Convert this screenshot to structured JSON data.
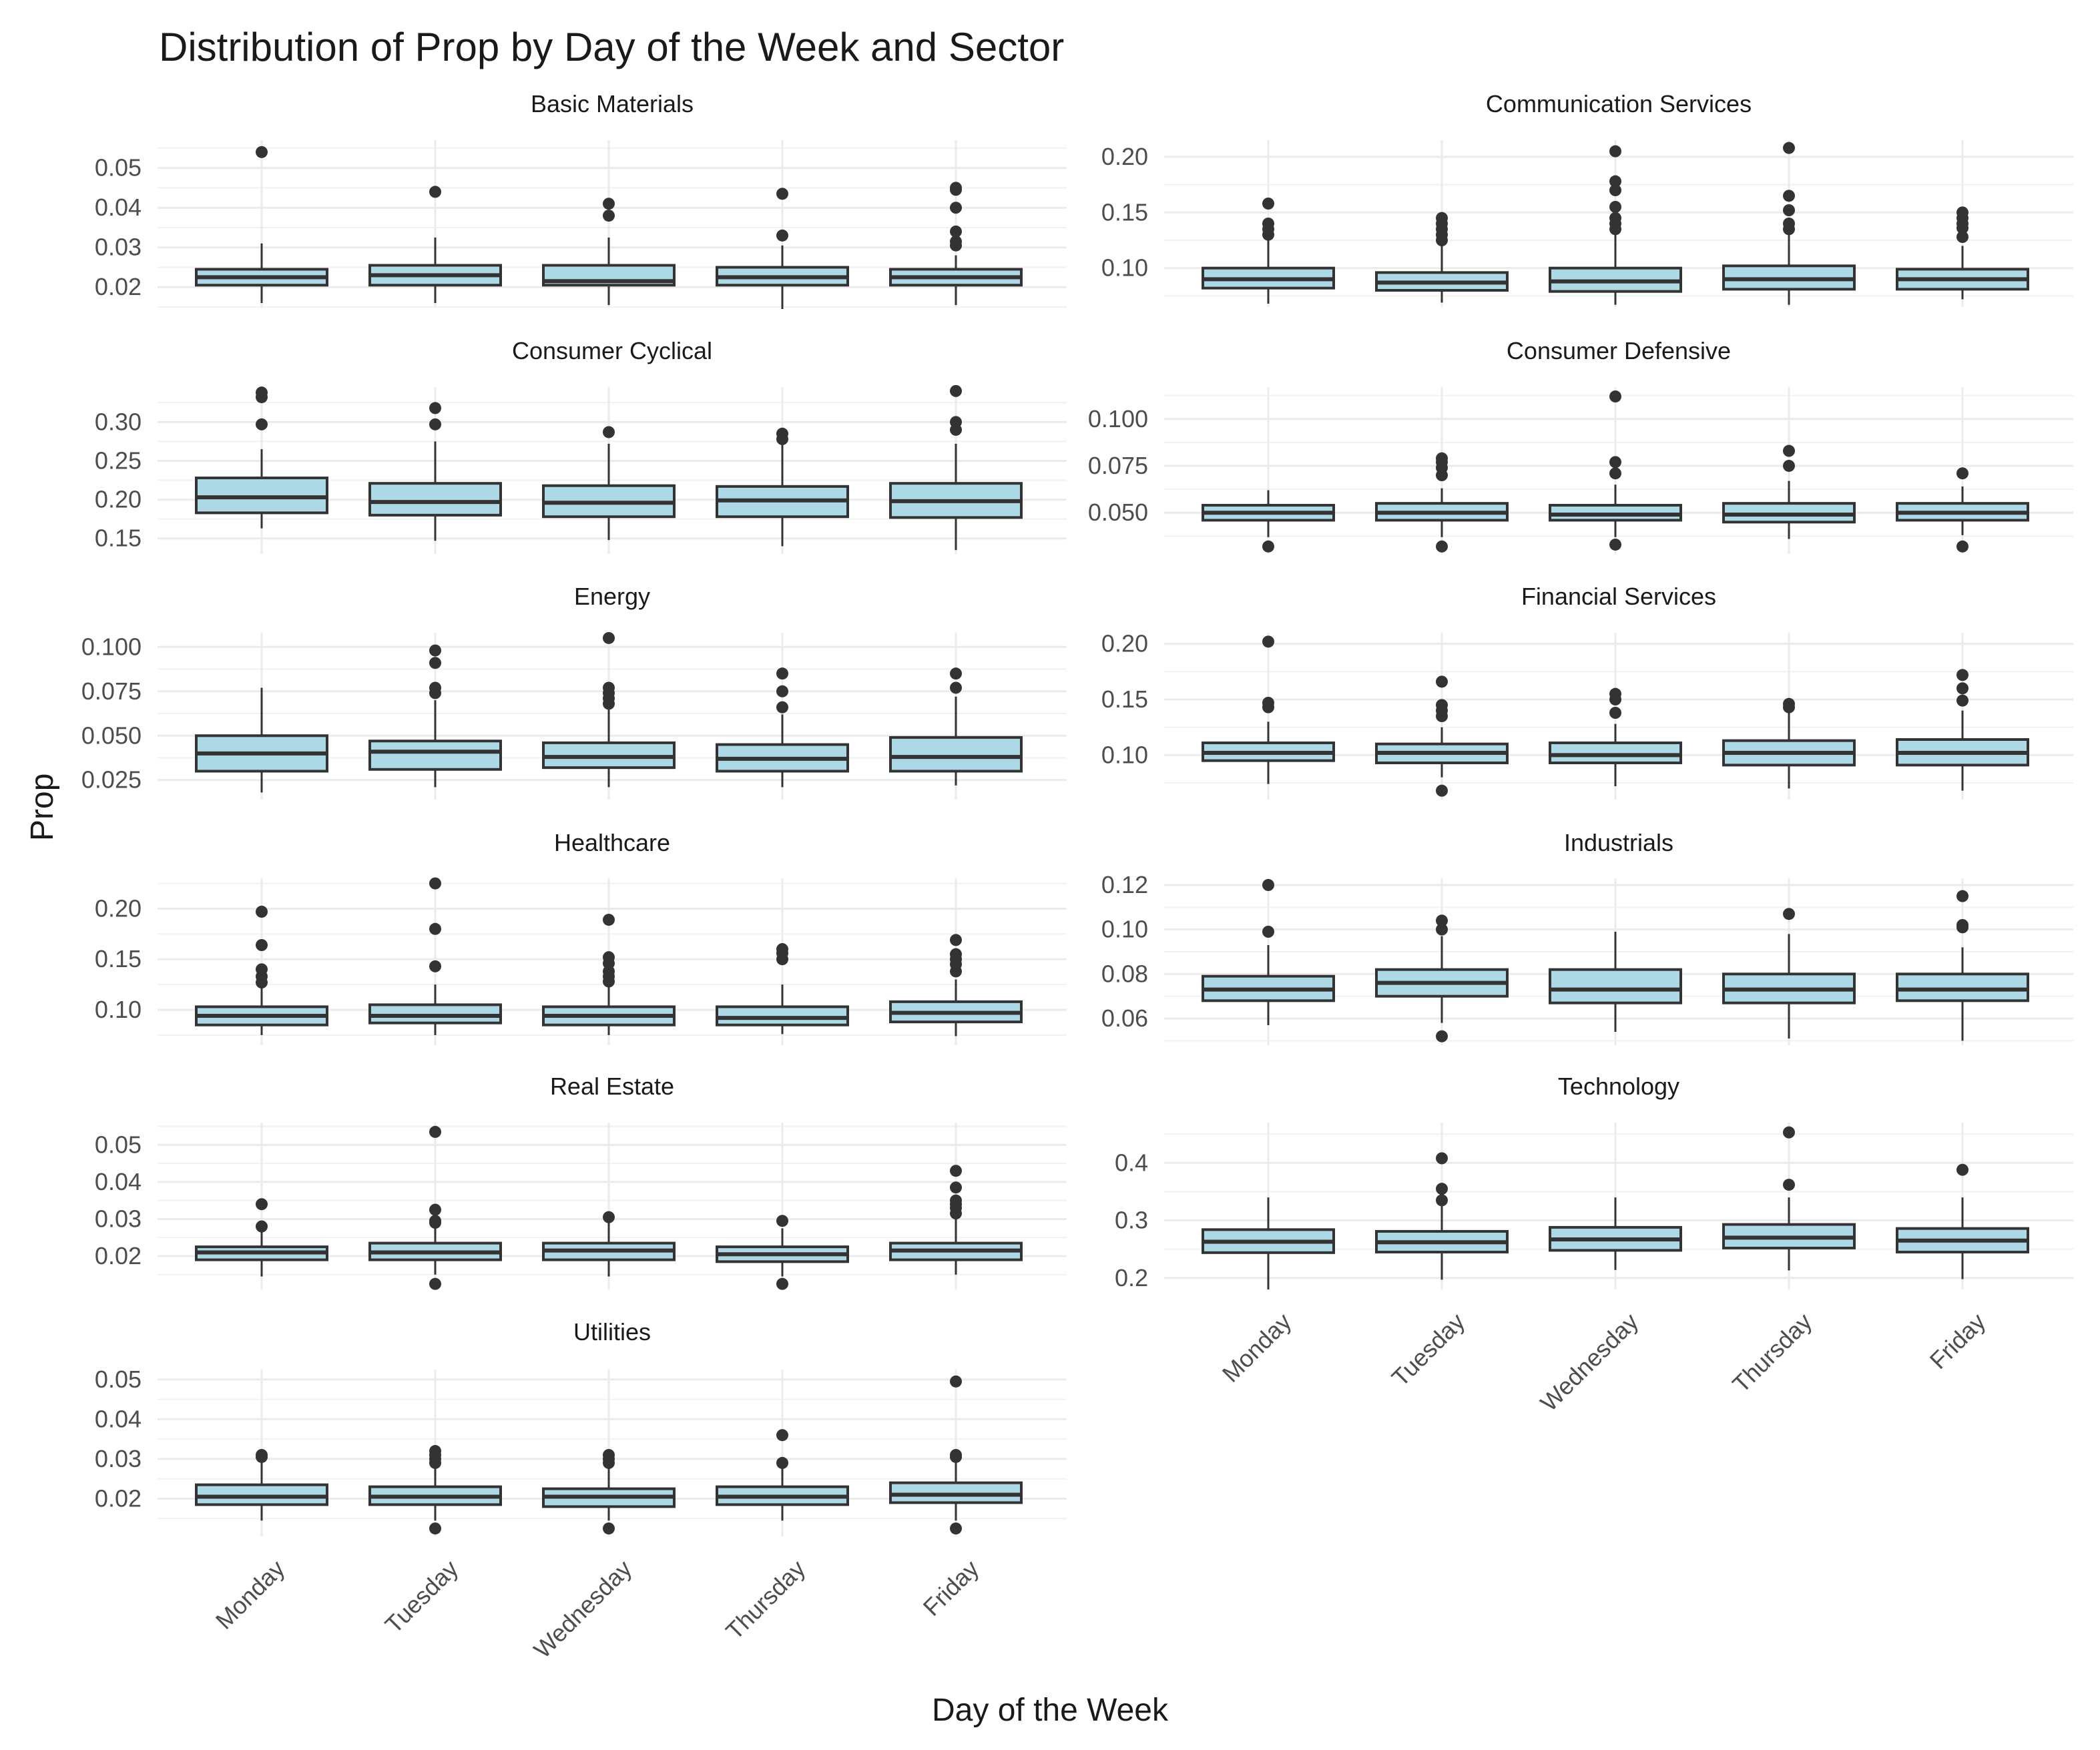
{
  "chart_data": {
    "type": "boxplot-faceted",
    "title": "Distribution of Prop by Day of the Week and Sector",
    "xlabel": "Day of the Week",
    "ylabel": "Prop",
    "categories": [
      "Monday",
      "Tuesday",
      "Wednesday",
      "Thursday",
      "Friday"
    ],
    "colors": {
      "box_fill": "#add8e6",
      "box_stroke": "#333333",
      "outlier": "#333333",
      "grid": "#ebebeb"
    },
    "facets": [
      {
        "name": "Basic Materials",
        "ylim": [
          0.015,
          0.057
        ],
        "yticks": [
          0.02,
          0.03,
          0.04,
          0.05
        ],
        "ytick_labels": [
          "0.02",
          "0.03",
          "0.04",
          "0.05"
        ],
        "boxes": [
          {
            "day": "Monday",
            "low": 0.016,
            "q1": 0.0205,
            "median": 0.0225,
            "q3": 0.0245,
            "high": 0.031,
            "outliers": [
              0.054
            ]
          },
          {
            "day": "Tuesday",
            "low": 0.016,
            "q1": 0.0205,
            "median": 0.023,
            "q3": 0.0255,
            "high": 0.0325,
            "outliers": [
              0.044
            ]
          },
          {
            "day": "Wednesday",
            "low": 0.0155,
            "q1": 0.0205,
            "median": 0.0215,
            "q3": 0.0255,
            "high": 0.0325,
            "outliers": [
              0.038,
              0.041
            ]
          },
          {
            "day": "Thursday",
            "low": 0.0145,
            "q1": 0.0205,
            "median": 0.0225,
            "q3": 0.025,
            "high": 0.0305,
            "outliers": [
              0.033,
              0.0435
            ]
          },
          {
            "day": "Friday",
            "low": 0.0155,
            "q1": 0.0205,
            "median": 0.0225,
            "q3": 0.0245,
            "high": 0.028,
            "outliers": [
              0.0305,
              0.0315,
              0.034,
              0.04,
              0.0445,
              0.045
            ]
          }
        ]
      },
      {
        "name": "Communication Services",
        "ylim": [
          0.065,
          0.215
        ],
        "yticks": [
          0.1,
          0.15,
          0.2
        ],
        "ytick_labels": [
          "0.10",
          "0.15",
          "0.20"
        ],
        "boxes": [
          {
            "day": "Monday",
            "low": 0.068,
            "q1": 0.082,
            "median": 0.09,
            "q3": 0.1,
            "high": 0.125,
            "outliers": [
              0.13,
              0.135,
              0.14,
              0.158
            ]
          },
          {
            "day": "Tuesday",
            "low": 0.069,
            "q1": 0.08,
            "median": 0.087,
            "q3": 0.096,
            "high": 0.12,
            "outliers": [
              0.125,
              0.13,
              0.135,
              0.14,
              0.145
            ]
          },
          {
            "day": "Wednesday",
            "low": 0.067,
            "q1": 0.079,
            "median": 0.088,
            "q3": 0.1,
            "high": 0.13,
            "outliers": [
              0.135,
              0.14,
              0.145,
              0.155,
              0.17,
              0.178,
              0.205
            ]
          },
          {
            "day": "Thursday",
            "low": 0.067,
            "q1": 0.081,
            "median": 0.09,
            "q3": 0.102,
            "high": 0.13,
            "outliers": [
              0.135,
              0.14,
              0.152,
              0.165,
              0.208
            ]
          },
          {
            "day": "Friday",
            "low": 0.072,
            "q1": 0.081,
            "median": 0.09,
            "q3": 0.099,
            "high": 0.12,
            "outliers": [
              0.128,
              0.136,
              0.14,
              0.145,
              0.15
            ]
          }
        ]
      },
      {
        "name": "Consumer Cyclical",
        "ylim": [
          0.13,
          0.345
        ],
        "yticks": [
          0.15,
          0.2,
          0.25,
          0.3
        ],
        "ytick_labels": [
          "0.15",
          "0.20",
          "0.25",
          "0.30"
        ],
        "boxes": [
          {
            "day": "Monday",
            "low": 0.163,
            "q1": 0.183,
            "median": 0.203,
            "q3": 0.228,
            "high": 0.265,
            "outliers": [
              0.297,
              0.332,
              0.338
            ]
          },
          {
            "day": "Tuesday",
            "low": 0.147,
            "q1": 0.18,
            "median": 0.197,
            "q3": 0.221,
            "high": 0.275,
            "outliers": [
              0.297,
              0.318
            ]
          },
          {
            "day": "Wednesday",
            "low": 0.148,
            "q1": 0.178,
            "median": 0.196,
            "q3": 0.218,
            "high": 0.272,
            "outliers": [
              0.287
            ]
          },
          {
            "day": "Thursday",
            "low": 0.14,
            "q1": 0.178,
            "median": 0.199,
            "q3": 0.217,
            "high": 0.272,
            "outliers": [
              0.278,
              0.285
            ]
          },
          {
            "day": "Friday",
            "low": 0.135,
            "q1": 0.177,
            "median": 0.198,
            "q3": 0.221,
            "high": 0.272,
            "outliers": [
              0.29,
              0.3,
              0.34
            ]
          }
        ]
      },
      {
        "name": "Consumer Defensive",
        "ylim": [
          0.028,
          0.117
        ],
        "yticks": [
          0.05,
          0.075,
          0.1
        ],
        "ytick_labels": [
          "0.050",
          "0.075",
          "0.100"
        ],
        "boxes": [
          {
            "day": "Monday",
            "low": 0.037,
            "q1": 0.046,
            "median": 0.05,
            "q3": 0.054,
            "high": 0.062,
            "outliers": [
              0.032
            ]
          },
          {
            "day": "Tuesday",
            "low": 0.037,
            "q1": 0.046,
            "median": 0.05,
            "q3": 0.055,
            "high": 0.063,
            "outliers": [
              0.032,
              0.07,
              0.074,
              0.077,
              0.079
            ]
          },
          {
            "day": "Wednesday",
            "low": 0.037,
            "q1": 0.046,
            "median": 0.049,
            "q3": 0.054,
            "high": 0.065,
            "outliers": [
              0.033,
              0.071,
              0.077,
              0.112
            ]
          },
          {
            "day": "Thursday",
            "low": 0.036,
            "q1": 0.045,
            "median": 0.049,
            "q3": 0.055,
            "high": 0.067,
            "outliers": [
              0.075,
              0.083
            ]
          },
          {
            "day": "Friday",
            "low": 0.038,
            "q1": 0.046,
            "median": 0.05,
            "q3": 0.055,
            "high": 0.064,
            "outliers": [
              0.032,
              0.071
            ]
          }
        ]
      },
      {
        "name": "Energy",
        "ylim": [
          0.014,
          0.108
        ],
        "yticks": [
          0.025,
          0.05,
          0.075,
          0.1
        ],
        "ytick_labels": [
          "0.025",
          "0.050",
          "0.075",
          "0.100"
        ],
        "boxes": [
          {
            "day": "Monday",
            "low": 0.018,
            "q1": 0.03,
            "median": 0.04,
            "q3": 0.05,
            "high": 0.077,
            "outliers": []
          },
          {
            "day": "Tuesday",
            "low": 0.021,
            "q1": 0.031,
            "median": 0.041,
            "q3": 0.047,
            "high": 0.07,
            "outliers": [
              0.074,
              0.077,
              0.091,
              0.098
            ]
          },
          {
            "day": "Wednesday",
            "low": 0.021,
            "q1": 0.032,
            "median": 0.038,
            "q3": 0.046,
            "high": 0.065,
            "outliers": [
              0.068,
              0.071,
              0.074,
              0.077,
              0.105
            ]
          },
          {
            "day": "Thursday",
            "low": 0.021,
            "q1": 0.03,
            "median": 0.037,
            "q3": 0.045,
            "high": 0.062,
            "outliers": [
              0.066,
              0.075,
              0.085
            ]
          },
          {
            "day": "Friday",
            "low": 0.022,
            "q1": 0.03,
            "median": 0.038,
            "q3": 0.049,
            "high": 0.072,
            "outliers": [
              0.077,
              0.085
            ]
          }
        ]
      },
      {
        "name": "Financial Services",
        "ylim": [
          0.06,
          0.21
        ],
        "yticks": [
          0.1,
          0.15,
          0.2
        ],
        "ytick_labels": [
          "0.10",
          "0.15",
          "0.20"
        ],
        "boxes": [
          {
            "day": "Monday",
            "low": 0.074,
            "q1": 0.095,
            "median": 0.102,
            "q3": 0.111,
            "high": 0.13,
            "outliers": [
              0.143,
              0.147,
              0.202
            ]
          },
          {
            "day": "Tuesday",
            "low": 0.08,
            "q1": 0.093,
            "median": 0.102,
            "q3": 0.11,
            "high": 0.125,
            "outliers": [
              0.068,
              0.135,
              0.14,
              0.145,
              0.166
            ]
          },
          {
            "day": "Wednesday",
            "low": 0.072,
            "q1": 0.093,
            "median": 0.1,
            "q3": 0.111,
            "high": 0.128,
            "outliers": [
              0.138,
              0.15,
              0.155
            ]
          },
          {
            "day": "Thursday",
            "low": 0.07,
            "q1": 0.091,
            "median": 0.102,
            "q3": 0.113,
            "high": 0.14,
            "outliers": [
              0.143,
              0.146
            ]
          },
          {
            "day": "Friday",
            "low": 0.068,
            "q1": 0.091,
            "median": 0.102,
            "q3": 0.114,
            "high": 0.14,
            "outliers": [
              0.149,
              0.16,
              0.172
            ]
          }
        ]
      },
      {
        "name": "Healthcare",
        "ylim": [
          0.065,
          0.23
        ],
        "yticks": [
          0.1,
          0.15,
          0.2
        ],
        "ytick_labels": [
          "0.10",
          "0.15",
          "0.20"
        ],
        "boxes": [
          {
            "day": "Monday",
            "low": 0.075,
            "q1": 0.085,
            "median": 0.094,
            "q3": 0.103,
            "high": 0.122,
            "outliers": [
              0.127,
              0.133,
              0.14,
              0.164,
              0.197
            ]
          },
          {
            "day": "Tuesday",
            "low": 0.075,
            "q1": 0.087,
            "median": 0.094,
            "q3": 0.105,
            "high": 0.125,
            "outliers": [
              0.143,
              0.18,
              0.225
            ]
          },
          {
            "day": "Wednesday",
            "low": 0.075,
            "q1": 0.085,
            "median": 0.094,
            "q3": 0.103,
            "high": 0.123,
            "outliers": [
              0.128,
              0.133,
              0.138,
              0.146,
              0.152,
              0.189
            ]
          },
          {
            "day": "Thursday",
            "low": 0.076,
            "q1": 0.085,
            "median": 0.092,
            "q3": 0.103,
            "high": 0.125,
            "outliers": [
              0.15,
              0.156,
              0.16
            ]
          },
          {
            "day": "Friday",
            "low": 0.074,
            "q1": 0.088,
            "median": 0.097,
            "q3": 0.108,
            "high": 0.13,
            "outliers": [
              0.138,
              0.145,
              0.15,
              0.155,
              0.169
            ]
          }
        ]
      },
      {
        "name": "Industrials",
        "ylim": [
          0.048,
          0.123
        ],
        "yticks": [
          0.06,
          0.08,
          0.1,
          0.12
        ],
        "ytick_labels": [
          "0.06",
          "0.08",
          "0.10",
          "0.12"
        ],
        "boxes": [
          {
            "day": "Monday",
            "low": 0.057,
            "q1": 0.068,
            "median": 0.073,
            "q3": 0.079,
            "high": 0.093,
            "outliers": [
              0.099,
              0.12
            ]
          },
          {
            "day": "Tuesday",
            "low": 0.058,
            "q1": 0.07,
            "median": 0.076,
            "q3": 0.082,
            "high": 0.097,
            "outliers": [
              0.052,
              0.1,
              0.104
            ]
          },
          {
            "day": "Wednesday",
            "low": 0.054,
            "q1": 0.067,
            "median": 0.073,
            "q3": 0.082,
            "high": 0.099,
            "outliers": []
          },
          {
            "day": "Thursday",
            "low": 0.051,
            "q1": 0.067,
            "median": 0.073,
            "q3": 0.08,
            "high": 0.098,
            "outliers": [
              0.107
            ]
          },
          {
            "day": "Friday",
            "low": 0.05,
            "q1": 0.068,
            "median": 0.073,
            "q3": 0.08,
            "high": 0.092,
            "outliers": [
              0.101,
              0.102,
              0.115
            ]
          }
        ]
      },
      {
        "name": "Real Estate",
        "ylim": [
          0.011,
          0.056
        ],
        "yticks": [
          0.02,
          0.03,
          0.04,
          0.05
        ],
        "ytick_labels": [
          "0.02",
          "0.03",
          "0.04",
          "0.05"
        ],
        "boxes": [
          {
            "day": "Monday",
            "low": 0.0145,
            "q1": 0.019,
            "median": 0.021,
            "q3": 0.0225,
            "high": 0.027,
            "outliers": [
              0.028,
              0.034
            ]
          },
          {
            "day": "Tuesday",
            "low": 0.015,
            "q1": 0.019,
            "median": 0.021,
            "q3": 0.0235,
            "high": 0.028,
            "outliers": [
              0.0125,
              0.029,
              0.0295,
              0.0325,
              0.0535
            ]
          },
          {
            "day": "Wednesday",
            "low": 0.0145,
            "q1": 0.019,
            "median": 0.0215,
            "q3": 0.0235,
            "high": 0.0295,
            "outliers": [
              0.0305
            ]
          },
          {
            "day": "Thursday",
            "low": 0.0145,
            "q1": 0.0185,
            "median": 0.0205,
            "q3": 0.0225,
            "high": 0.0275,
            "outliers": [
              0.0125,
              0.0295
            ]
          },
          {
            "day": "Friday",
            "low": 0.015,
            "q1": 0.019,
            "median": 0.0215,
            "q3": 0.0235,
            "high": 0.03,
            "outliers": [
              0.0315,
              0.033,
              0.034,
              0.035,
              0.0385,
              0.043
            ]
          }
        ]
      },
      {
        "name": "Technology",
        "ylim": [
          0.18,
          0.47
        ],
        "yticks": [
          0.2,
          0.3,
          0.4
        ],
        "ytick_labels": [
          "0.2",
          "0.3",
          "0.4"
        ],
        "boxes": [
          {
            "day": "Monday",
            "low": 0.18,
            "q1": 0.244,
            "median": 0.263,
            "q3": 0.284,
            "high": 0.34,
            "outliers": []
          },
          {
            "day": "Tuesday",
            "low": 0.197,
            "q1": 0.245,
            "median": 0.262,
            "q3": 0.281,
            "high": 0.325,
            "outliers": [
              0.335,
              0.355,
              0.408
            ]
          },
          {
            "day": "Wednesday",
            "low": 0.214,
            "q1": 0.248,
            "median": 0.267,
            "q3": 0.288,
            "high": 0.34,
            "outliers": []
          },
          {
            "day": "Thursday",
            "low": 0.213,
            "q1": 0.252,
            "median": 0.27,
            "q3": 0.293,
            "high": 0.34,
            "outliers": [
              0.362,
              0.453
            ]
          },
          {
            "day": "Friday",
            "low": 0.198,
            "q1": 0.245,
            "median": 0.265,
            "q3": 0.286,
            "high": 0.34,
            "outliers": [
              0.388
            ]
          }
        ]
      },
      {
        "name": "Utilities",
        "ylim": [
          0.0105,
          0.0525
        ],
        "yticks": [
          0.02,
          0.03,
          0.04,
          0.05
        ],
        "ytick_labels": [
          "0.02",
          "0.03",
          "0.04",
          "0.05"
        ],
        "boxes": [
          {
            "day": "Monday",
            "low": 0.0145,
            "q1": 0.0185,
            "median": 0.0205,
            "q3": 0.0235,
            "high": 0.0295,
            "outliers": [
              0.0305,
              0.031
            ]
          },
          {
            "day": "Tuesday",
            "low": 0.0145,
            "q1": 0.0185,
            "median": 0.0205,
            "q3": 0.023,
            "high": 0.028,
            "outliers": [
              0.0125,
              0.029,
              0.03,
              0.031,
              0.032
            ]
          },
          {
            "day": "Wednesday",
            "low": 0.0145,
            "q1": 0.018,
            "median": 0.0205,
            "q3": 0.0225,
            "high": 0.028,
            "outliers": [
              0.0125,
              0.029,
              0.03,
              0.031
            ]
          },
          {
            "day": "Thursday",
            "low": 0.0145,
            "q1": 0.0185,
            "median": 0.0205,
            "q3": 0.023,
            "high": 0.0285,
            "outliers": [
              0.029,
              0.036
            ]
          },
          {
            "day": "Friday",
            "low": 0.0145,
            "q1": 0.019,
            "median": 0.021,
            "q3": 0.024,
            "high": 0.0295,
            "outliers": [
              0.0125,
              0.0305,
              0.031,
              0.0495
            ]
          }
        ]
      }
    ]
  }
}
